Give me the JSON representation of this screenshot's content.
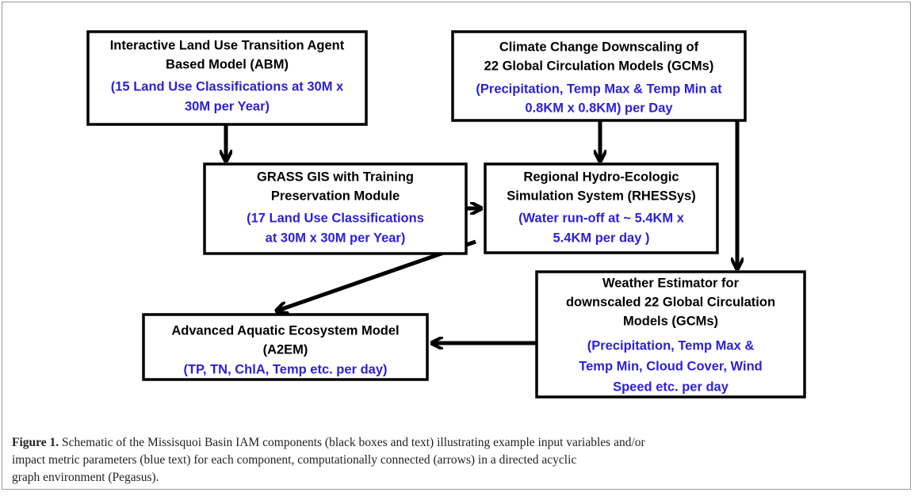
{
  "boxes": [
    {
      "title": [
        "Interactive Land Use Transition Agent",
        "Based Model (ABM)"
      ],
      "detail": [
        "(15 Land Use Classifications at 30M x",
        "30M  per Year)"
      ]
    },
    {
      "title": [
        "Climate Change Downscaling of",
        "22 Global Circulation Models (GCMs)"
      ],
      "detail": [
        "(Precipitation, Temp Max & Temp Min at",
        "0.8KM x 0.8KM) per Day"
      ]
    },
    {
      "title": [
        "GRASS GIS with Training",
        "Preservation Module"
      ],
      "detail": [
        "(17 Land Use Classifications",
        "at 30M x 30M per Year)"
      ]
    },
    {
      "title": [
        "Regional Hydro-Ecologic",
        "Simulation System (RHESSys)"
      ],
      "detail": [
        "(Water run-off at ~ 5.4KM x",
        "5.4KM per day )"
      ]
    },
    {
      "title": [
        "Weather Estimator for",
        "downscaled 22 Global Circulation",
        "Models (GCMs)"
      ],
      "detail": [
        "(Precipitation, Temp Max &",
        "Temp Min, Cloud Cover, Wind",
        "Speed etc. per day"
      ]
    },
    {
      "title": [
        "Advanced Aquatic Ecosystem Model",
        "(A2EM)"
      ],
      "detail": [
        "(TP, TN, ChlA, Temp etc. per day)"
      ]
    }
  ],
  "caption": {
    "label": "Figure 1.",
    "lines": [
      "Schematic of the Missisquoi Basin IAM components (black boxes and text) illustrating example input variables and/or",
      "impact metric parameters (blue text) for each component, computationally connected (arrows) in a directed acyclic",
      "graph environment (Pegasus)."
    ]
  }
}
